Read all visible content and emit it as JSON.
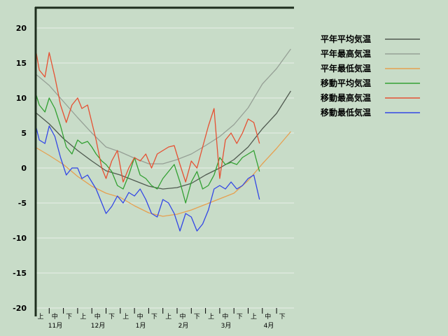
{
  "chart_data": {
    "type": "line",
    "title": "",
    "xlabel": "",
    "ylabel": "",
    "ylim": [
      -20,
      23
    ],
    "y_ticks": [
      -20,
      -15,
      -10,
      -5,
      0,
      5,
      10,
      15,
      20
    ],
    "grid": "horizontal",
    "legend_position": "right",
    "x_period_labels": [
      "上",
      "中",
      "下",
      "上",
      "中",
      "下",
      "上",
      "中",
      "下",
      "上",
      "中",
      "下",
      "上",
      "中",
      "下",
      "上",
      "中",
      "下"
    ],
    "x_month_labels": [
      "11月",
      "12月",
      "1月",
      "2月",
      "3月",
      "4月"
    ],
    "series": [
      {
        "name": "平年平均気温",
        "color": "#505a50",
        "x": [
          0,
          1,
          2,
          3,
          4,
          5,
          6,
          7,
          8,
          9,
          10,
          11,
          12,
          13,
          14,
          15,
          16,
          17,
          18
        ],
        "values": [
          8,
          6.3,
          4.2,
          2.5,
          1,
          -0.4,
          -1,
          -1.8,
          -2.6,
          -3,
          -2.8,
          -2.2,
          -1,
          0,
          1.2,
          3,
          5.6,
          7.8,
          11
        ]
      },
      {
        "name": "平年最高気温",
        "color": "#96a096",
        "x": [
          0,
          1,
          2,
          3,
          4,
          5,
          6,
          7,
          8,
          9,
          10,
          11,
          12,
          13,
          14,
          15,
          16,
          17,
          18
        ],
        "values": [
          13.5,
          11.8,
          9.5,
          7.2,
          5,
          3,
          2.3,
          1.4,
          0.6,
          0.6,
          1.2,
          2,
          3.2,
          4.5,
          6.2,
          8.6,
          12,
          14.2,
          17
        ]
      },
      {
        "name": "平年最低気温",
        "color": "#e6a050",
        "x": [
          0,
          1,
          2,
          3,
          4,
          5,
          6,
          7,
          8,
          9,
          10,
          11,
          12,
          13,
          14,
          15,
          16,
          17,
          18
        ],
        "values": [
          3,
          1.8,
          0.5,
          -1.2,
          -2.6,
          -3.6,
          -4.2,
          -5.4,
          -6.4,
          -6.9,
          -6.6,
          -6,
          -5.2,
          -4.4,
          -3.6,
          -1.8,
          0.6,
          2.8,
          5.2
        ]
      },
      {
        "name": "移動平均気温",
        "color": "#32a032",
        "x": [
          0,
          0.3,
          0.7,
          1,
          1.4,
          1.8,
          2.2,
          2.6,
          3,
          3.3,
          3.7,
          4,
          4.3,
          4.7,
          5,
          5.4,
          5.8,
          6.2,
          6.6,
          7,
          7.4,
          7.8,
          8.2,
          8.6,
          9,
          9.4,
          9.8,
          10.2,
          10.6,
          11,
          11.4,
          11.8,
          12.2,
          12.6,
          13,
          13.4,
          13.8,
          14.2,
          14.6,
          15,
          15.4,
          15.8
        ],
        "values": [
          11,
          9,
          8,
          10,
          8.5,
          6,
          3,
          2,
          4,
          3.5,
          3.8,
          3,
          2,
          1,
          0.5,
          -0.5,
          -2.5,
          -3,
          -1,
          1.5,
          -1,
          -1.5,
          -2.5,
          -3,
          -1.5,
          -0.5,
          0.5,
          -2,
          -5,
          -2,
          -0.5,
          -3,
          -2.5,
          -1,
          1.5,
          0.5,
          0.8,
          0.5,
          1.5,
          2,
          2.5,
          -0.5
        ]
      },
      {
        "name": "移動最高気温",
        "color": "#e65032",
        "x": [
          0,
          0.3,
          0.7,
          1,
          1.4,
          1.8,
          2.2,
          2.6,
          3,
          3.3,
          3.7,
          4,
          4.3,
          4.7,
          5,
          5.4,
          5.8,
          6.2,
          6.6,
          7,
          7.4,
          7.8,
          8.2,
          8.6,
          9,
          9.4,
          9.8,
          10.2,
          10.6,
          11,
          11.4,
          11.8,
          12.2,
          12.6,
          13,
          13.4,
          13.8,
          14.2,
          14.6,
          15,
          15.4,
          15.8
        ],
        "values": [
          17.5,
          14,
          13,
          16.5,
          13,
          9,
          6.5,
          9,
          10,
          8.5,
          9,
          6.5,
          4,
          0,
          -1.5,
          1,
          2.5,
          -2,
          0,
          1.5,
          1,
          2,
          0,
          2,
          2.5,
          3,
          3.2,
          0.5,
          -2,
          1,
          0,
          3,
          6,
          8.5,
          -1.5,
          4,
          5,
          3.5,
          5,
          7,
          6.5,
          3.5
        ]
      },
      {
        "name": "移動最低気温",
        "color": "#3246e6",
        "x": [
          0,
          0.3,
          0.7,
          1,
          1.4,
          1.8,
          2.2,
          2.6,
          3,
          3.3,
          3.7,
          4,
          4.3,
          4.7,
          5,
          5.4,
          5.8,
          6.2,
          6.6,
          7,
          7.4,
          7.8,
          8.2,
          8.6,
          9,
          9.4,
          9.8,
          10.2,
          10.6,
          11,
          11.4,
          11.8,
          12.2,
          12.6,
          13,
          13.4,
          13.8,
          14.2,
          14.6,
          15,
          15.4,
          15.8
        ],
        "values": [
          6.5,
          4,
          3.5,
          6,
          4.5,
          1.5,
          -1,
          0,
          0,
          -1.5,
          -1,
          -2,
          -3,
          -5,
          -6.5,
          -5.5,
          -4,
          -5,
          -3.5,
          -4,
          -3,
          -4.5,
          -6.5,
          -7,
          -4.5,
          -5,
          -6.5,
          -9,
          -6.5,
          -7,
          -9,
          -8,
          -6,
          -3,
          -2.5,
          -3,
          -2,
          -3,
          -2.5,
          -1.5,
          -1,
          -4.5
        ]
      }
    ]
  }
}
